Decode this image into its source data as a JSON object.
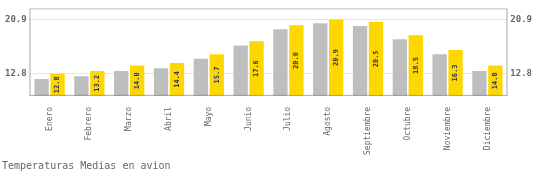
{
  "chart_data": {
    "type": "bar",
    "title": "Temperaturas Medias en avion",
    "categories": [
      "Enero",
      "Febrero",
      "Marzo",
      "Abril",
      "Mayo",
      "Junio",
      "Julio",
      "Agosto",
      "Septiembre",
      "Octubre",
      "Noviembre",
      "Diciembre"
    ],
    "series": [
      {
        "color": "#BEBEBE",
        "values": [
          12.0,
          12.4,
          13.2,
          13.6,
          15.0,
          17.0,
          19.4,
          20.3,
          19.9,
          17.9,
          15.7,
          13.2
        ]
      },
      {
        "color": "#FFD700",
        "values": [
          12.8,
          13.2,
          14.0,
          14.4,
          15.7,
          17.6,
          20.0,
          20.9,
          20.5,
          18.5,
          16.3,
          14.0
        ],
        "data_labels": true,
        "value_labels": [
          "12.8",
          "13.2",
          "14.0",
          "14.4",
          "15.7",
          "17.6",
          "20.0",
          "20.9",
          "20.5",
          "18.5",
          "16.3",
          "14.0"
        ]
      }
    ],
    "ylim": [
      9.5,
      22.5
    ],
    "yticks": [
      12.8,
      20.9
    ],
    "y2lim": [
      9.5,
      22.5
    ],
    "y2ticks": [
      12.8,
      20.9
    ],
    "grid": true
  }
}
